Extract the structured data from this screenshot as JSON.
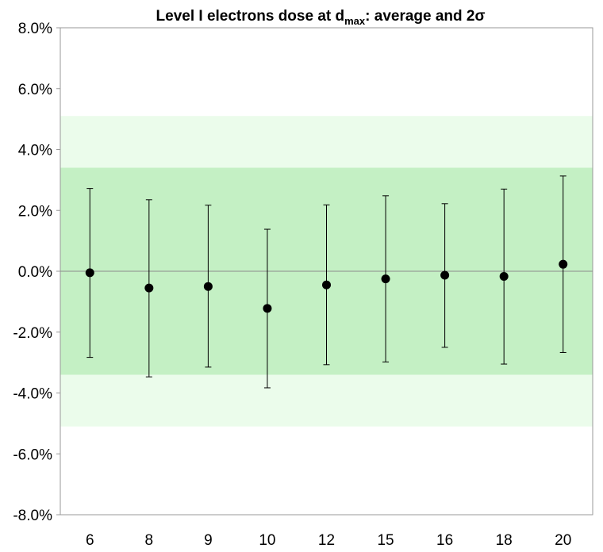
{
  "chart_data": {
    "type": "scatter",
    "title": {
      "prefix": "Level I electrons dose at d",
      "subscript": "max",
      "suffix": ": average and 2σ"
    },
    "xlabel": "",
    "ylabel": "",
    "categories": [
      "6",
      "8",
      "9",
      "10",
      "12",
      "15",
      "16",
      "18",
      "20"
    ],
    "series": [
      {
        "values": [
          -0.05,
          -0.55,
          -0.5,
          -1.22,
          -0.45,
          -0.25,
          -0.13,
          -0.17,
          0.23
        ],
        "error_upper": [
          2.72,
          2.35,
          2.17,
          1.38,
          2.18,
          2.48,
          2.22,
          2.7,
          3.13
        ],
        "error_lower": [
          -2.83,
          -3.47,
          -3.15,
          -3.83,
          -3.07,
          -2.98,
          -2.5,
          -3.05,
          -2.67
        ]
      }
    ],
    "ylim": [
      -8,
      8
    ],
    "yticks": [
      -8,
      -6,
      -4,
      -2,
      0,
      2,
      4,
      6,
      8
    ],
    "ytick_labels": [
      "-8.0%",
      "-6.0%",
      "-4.0%",
      "-2.0%",
      "0.0%",
      "2.0%",
      "4.0%",
      "6.0%",
      "8.0%"
    ],
    "bands": [
      {
        "from": -5.1,
        "to": 5.1,
        "color": "#ebfceb"
      },
      {
        "from": -3.4,
        "to": 3.4,
        "color": "#c4f0c4"
      }
    ],
    "grid": false,
    "colors": {
      "marker": "#000000",
      "zero_line": "#8c8c8c",
      "frame": "#999999"
    }
  }
}
